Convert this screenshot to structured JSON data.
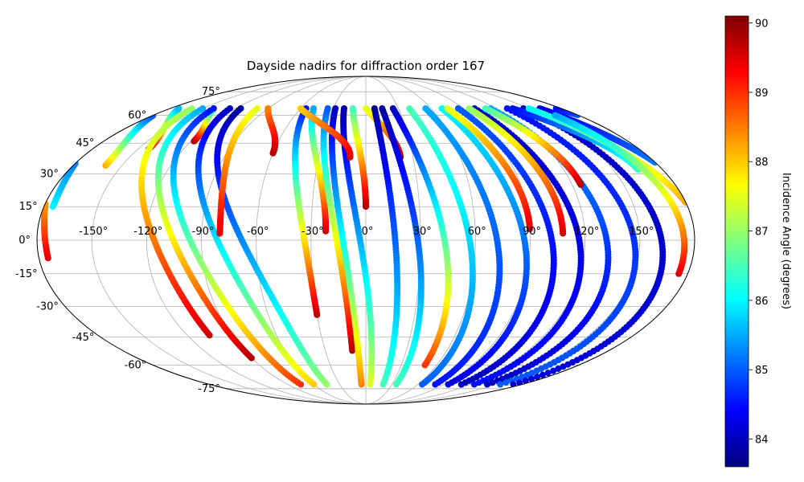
{
  "chart_data": {
    "type": "scatter",
    "projection": "mollweide",
    "title": "Dayside nadirs for diffraction order 167",
    "grid": true,
    "x_ticks": [
      "-150°",
      "-120°",
      "-90°",
      "-60°",
      "-30°",
      "0°",
      "30°",
      "60°",
      "90°",
      "120°",
      "150°"
    ],
    "y_ticks": [
      "75°",
      "60°",
      "45°",
      "30°",
      "15°",
      "0°",
      "-15°",
      "-30°",
      "-45°",
      "-60°",
      "-75°"
    ],
    "xlim": [
      -180,
      180
    ],
    "ylim": [
      -90,
      90
    ],
    "colorbar": {
      "label": "Incidence Angle (degrees)",
      "range": [
        83.6,
        90.1
      ],
      "ticks": [
        "84",
        "85",
        "86",
        "87",
        "88",
        "89",
        "90"
      ],
      "colormap": "jet",
      "colors": [
        "#00007f",
        "#0000ff",
        "#007fff",
        "#00ffff",
        "#7fff7f",
        "#ffff00",
        "#ff7f00",
        "#ff0000",
        "#7f0000"
      ]
    },
    "tracks": [
      {
        "lon0": -175,
        "lon1": -200,
        "lat0": 15,
        "lat1": 64,
        "c0": 86.0,
        "c1": 84.2
      },
      {
        "lon0": -160,
        "lon1": -185,
        "lat0": 34,
        "lat1": 64,
        "c0": 88.2,
        "c1": 84.5
      },
      {
        "lon0": -143,
        "lon1": -172,
        "lat0": 42,
        "lat1": 64,
        "c0": 89.8,
        "c1": 85.6
      },
      {
        "lon0": -118,
        "lon1": -140,
        "lat0": 46,
        "lat1": 64,
        "c0": 89.9,
        "c1": 86.0
      },
      {
        "lon0": -105,
        "lon1": -160,
        "lat0": -44,
        "lat1": 64,
        "c0": 89.6,
        "c1": 87.0
      },
      {
        "lon0": -90,
        "lon1": -150,
        "lat0": -56,
        "lat1": 64,
        "c0": 89.8,
        "c1": 85.5
      },
      {
        "lon0": -75,
        "lon1": -140,
        "lat0": -72,
        "lat1": 64,
        "c0": 89.0,
        "c1": 84.5
      },
      {
        "lon0": -60,
        "lon1": -125,
        "lat0": -72,
        "lat1": 64,
        "c0": 88.0,
        "c1": 84.0
      },
      {
        "lon0": -45,
        "lon1": -115,
        "lat0": -72,
        "lat1": 64,
        "c0": 87.0,
        "c1": 83.8
      },
      {
        "lon0": -80,
        "lon1": -100,
        "lat0": 3,
        "lat1": 64,
        "c0": 89.5,
        "c1": 87.5
      },
      {
        "lon0": -60,
        "lon1": -90,
        "lat0": 40,
        "lat1": 64,
        "c0": 89.8,
        "c1": 88.5
      },
      {
        "lon0": -30,
        "lon1": -55,
        "lat0": -34,
        "lat1": 64,
        "c0": 89.7,
        "c1": 84.5
      },
      {
        "lon0": -22,
        "lon1": -48,
        "lat0": 4,
        "lat1": 64,
        "c0": 89.6,
        "c1": 85.5
      },
      {
        "lon0": -10,
        "lon1": -35,
        "lat0": -52,
        "lat1": 64,
        "c0": 89.8,
        "c1": 85.0
      },
      {
        "lon0": -5,
        "lon1": -28,
        "lat0": -72,
        "lat1": 64,
        "c0": 88.5,
        "c1": 84.0
      },
      {
        "lon0": 5,
        "lon1": -20,
        "lat0": -72,
        "lat1": 64,
        "c0": 87.5,
        "c1": 83.8
      },
      {
        "lon0": -10,
        "lon1": -60,
        "lat0": 38,
        "lat1": 64,
        "c0": 89.6,
        "c1": 88.0
      },
      {
        "lon0": 0,
        "lon1": -12,
        "lat0": 15,
        "lat1": 64,
        "c0": 89.8,
        "c1": 86.5
      },
      {
        "lon0": 22,
        "lon1": 0,
        "lat0": 38,
        "lat1": 64,
        "c0": 89.9,
        "c1": 87.5
      },
      {
        "lon0": 20,
        "lon1": 8,
        "lat0": -72,
        "lat1": 64,
        "c0": 86.5,
        "c1": 83.8
      },
      {
        "lon0": 35,
        "lon1": 15,
        "lat0": -72,
        "lat1": 64,
        "c0": 86.5,
        "c1": 83.8
      },
      {
        "lon0": 50,
        "lon1": 25,
        "lat0": -60,
        "lat1": 64,
        "c0": 89.0,
        "c1": 84.0
      },
      {
        "lon0": 65,
        "lon1": 40,
        "lat0": -72,
        "lat1": 64,
        "c0": 85.0,
        "c1": 86.5
      },
      {
        "lon0": 80,
        "lon1": 55,
        "lat0": -72,
        "lat1": 64,
        "c0": 84.5,
        "c1": 85.5
      },
      {
        "lon0": 95,
        "lon1": 70,
        "lat0": -72,
        "lat1": 64,
        "c0": 84.2,
        "c1": 86.0
      },
      {
        "lon0": 110,
        "lon1": 85,
        "lat0": -72,
        "lat1": 64,
        "c0": 84.0,
        "c1": 85.0
      },
      {
        "lon0": 125,
        "lon1": 100,
        "lat0": -72,
        "lat1": 64,
        "c0": 84.5,
        "c1": 84.0
      },
      {
        "lon0": 140,
        "lon1": 115,
        "lat0": -72,
        "lat1": 64,
        "c0": 84.0,
        "c1": 85.5
      },
      {
        "lon0": 155,
        "lon1": 130,
        "lat0": -72,
        "lat1": 64,
        "c0": 85.0,
        "c1": 84.5
      },
      {
        "lon0": 170,
        "lon1": 145,
        "lat0": -72,
        "lat1": 64,
        "c0": 84.2,
        "c1": 84.0
      },
      {
        "lon0": 90,
        "lon1": 75,
        "lat0": 5,
        "lat1": 64,
        "c0": 89.5,
        "c1": 87.5
      },
      {
        "lon0": 108,
        "lon1": 95,
        "lat0": 3,
        "lat1": 64,
        "c0": 89.6,
        "c1": 87.0
      },
      {
        "lon0": 125,
        "lon1": 110,
        "lat0": 25,
        "lat1": 64,
        "c0": 89.8,
        "c1": 86.5
      },
      {
        "lon0": 165,
        "lon1": 135,
        "lat0": 32,
        "lat1": 64,
        "c0": 86.5,
        "c1": 84.5
      },
      {
        "lon0": 185,
        "lon1": 150,
        "lat0": -8,
        "lat1": 64,
        "c0": 89.5,
        "c1": 86.0
      },
      {
        "lon0": 175,
        "lon1": 160,
        "lat0": -15,
        "lat1": 60,
        "c0": 89.5,
        "c1": 85.5
      }
    ]
  }
}
